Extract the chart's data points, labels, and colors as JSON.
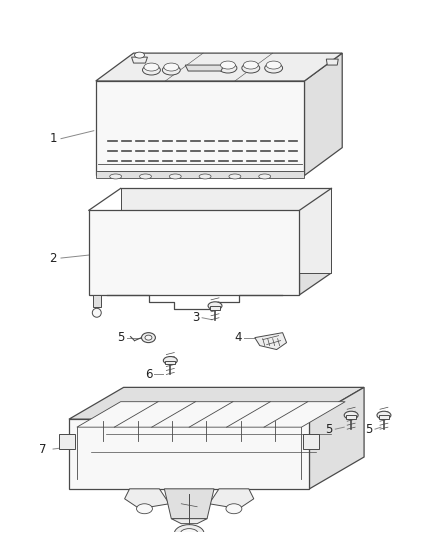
{
  "background_color": "#ffffff",
  "line_color": "#4a4a4a",
  "light_fill": "#f8f8f8",
  "mid_fill": "#eeeeee",
  "dark_fill": "#e0e0e0",
  "label_color": "#222222",
  "figsize": [
    4.38,
    5.33
  ],
  "dpi": 100
}
